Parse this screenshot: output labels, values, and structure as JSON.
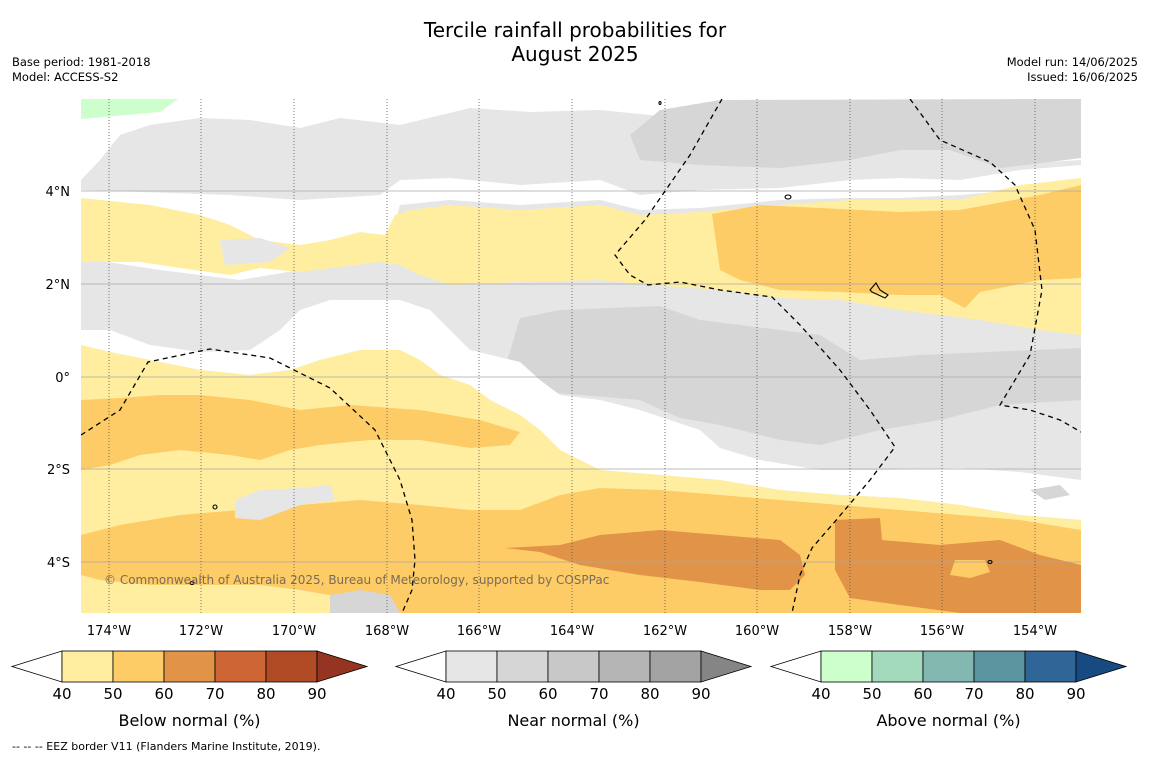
{
  "title_line1": "Tercile rainfall probabilities for",
  "title_line2": "August 2025",
  "meta": {
    "base_period": "Base period: 1981-2018",
    "model": "Model: ACCESS-S2",
    "model_run": "Model run: 14/06/2025",
    "issued": "Issued: 16/06/2025"
  },
  "map": {
    "lon_labels": [
      "174°W",
      "172°W",
      "170°W",
      "168°W",
      "166°W",
      "164°W",
      "162°W",
      "160°W",
      "158°W",
      "156°W",
      "154°W"
    ],
    "lat_labels": [
      "4°N",
      "2°N",
      "0°",
      "2°S",
      "4°S"
    ],
    "credit": "© Commonwealth of Australia 2025, Bureau of Meteorology, supported by COSPPac"
  },
  "colorbars": [
    {
      "label": "Below normal (%)",
      "ticks": [
        "40",
        "50",
        "60",
        "70",
        "80",
        "90"
      ],
      "colors": [
        "#ffeea0",
        "#fdcc66",
        "#e19347",
        "#cd6535",
        "#b14b26",
        "#953420"
      ]
    },
    {
      "label": "Near normal (%)",
      "ticks": [
        "40",
        "50",
        "60",
        "70",
        "80",
        "90"
      ],
      "colors": [
        "#e6e6e6",
        "#d6d6d6",
        "#c8c8c8",
        "#b5b5b5",
        "#a3a3a3",
        "#858585"
      ]
    },
    {
      "label": "Above normal (%)",
      "ticks": [
        "40",
        "50",
        "60",
        "70",
        "80",
        "90"
      ],
      "colors": [
        "#ccffcc",
        "#a3d9bd",
        "#82b8b0",
        "#5b939f",
        "#2f6597",
        "#174a80"
      ]
    }
  ],
  "footnote": "--  --  -- EEZ border V11 (Flanders Marine Institute, 2019)."
}
